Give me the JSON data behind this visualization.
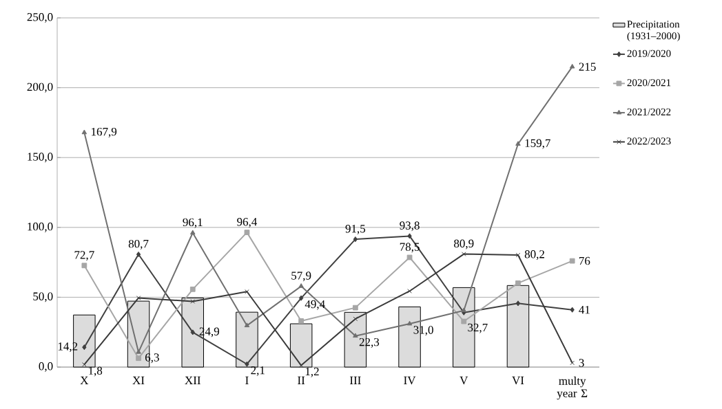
{
  "chart_data": {
    "type": "line",
    "categories": [
      "X",
      "XI",
      "XII",
      "I",
      "II",
      "III",
      "IV",
      "V",
      "VI",
      "multy year Σ"
    ],
    "ylim": [
      0,
      250
    ],
    "yticks": [
      {
        "value": 0,
        "label": "0,0"
      },
      {
        "value": 50,
        "label": "50,0"
      },
      {
        "value": 100,
        "label": "100,0"
      },
      {
        "value": 150,
        "label": "150,0"
      },
      {
        "value": 200,
        "label": "200,0"
      },
      {
        "value": 250,
        "label": "250,0"
      }
    ],
    "grid": "y",
    "legend": "right",
    "series": [
      {
        "name": "Precipitation (1931–2000)",
        "type": "bar",
        "color": "#dcdcdc",
        "values": [
          37.3,
          47.2,
          49.5,
          39.3,
          31.0,
          39.2,
          43.1,
          56.9,
          58.4,
          null
        ]
      },
      {
        "name": "2019/2020",
        "color": "#404040",
        "marker": "diamond",
        "values": [
          14.2,
          80.7,
          24.9,
          2.1,
          49.4,
          91.5,
          93.8,
          39.0,
          45.6,
          41
        ],
        "value_labels": [
          "14,2",
          "80,7",
          "24,9",
          "2,1",
          "49,4",
          "91,5",
          "93,8",
          null,
          null,
          "41"
        ]
      },
      {
        "name": "2020/2021",
        "color": "#a6a6a6",
        "marker": "square",
        "values": [
          72.7,
          6.3,
          55.7,
          96.4,
          33.0,
          42.5,
          78.5,
          32.7,
          60.1,
          76
        ],
        "value_labels": [
          "72,7",
          "6,3",
          null,
          "96,4",
          null,
          null,
          "78,5",
          "32,7",
          null,
          "76"
        ]
      },
      {
        "name": "2021/2022",
        "color": "#707070",
        "marker": "triangle",
        "values": [
          167.9,
          10.7,
          96.1,
          29.7,
          57.9,
          22.3,
          31.0,
          40.5,
          159.7,
          215
        ],
        "value_labels": [
          "167,9",
          null,
          "96,1",
          null,
          "57,9",
          "22,3",
          "31,0",
          null,
          "159,7",
          "215"
        ]
      },
      {
        "name": "2022/2023",
        "color": "#3a3a3a",
        "marker": "cross",
        "values": [
          1.8,
          49.5,
          47.0,
          54.0,
          1.2,
          34.5,
          54.4,
          80.9,
          80.2,
          3
        ],
        "value_labels": [
          "1,8",
          null,
          null,
          null,
          "1,2",
          null,
          null,
          "80,9",
          "80,2",
          "3"
        ]
      }
    ]
  }
}
